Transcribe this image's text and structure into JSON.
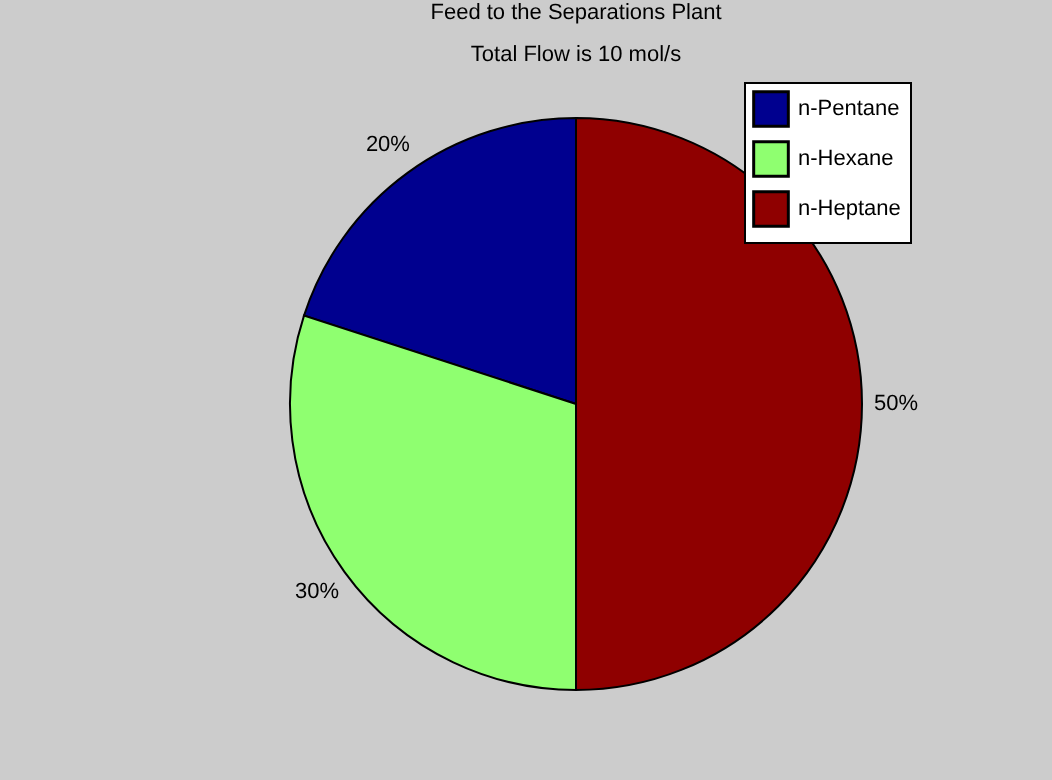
{
  "chart_data": {
    "type": "pie",
    "title": "Feed to the Separations Plant",
    "subtitle": "Total Flow is 10 mol/s",
    "categories": [
      "n-Pentane",
      "n-Hexane",
      "n-Heptane"
    ],
    "values": [
      20,
      30,
      50
    ],
    "value_labels": [
      "20%",
      "30%",
      "50%"
    ],
    "colors": [
      "#00008f",
      "#8fff70",
      "#8f0000"
    ],
    "legend": "top right"
  }
}
